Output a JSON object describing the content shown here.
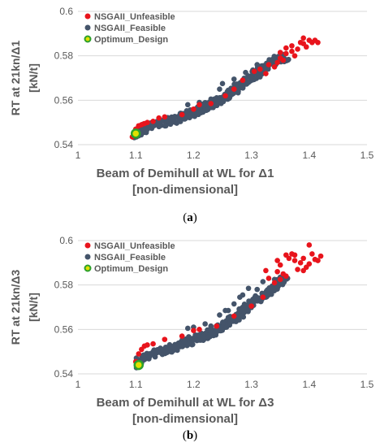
{
  "colors": {
    "unfeasible": "#e8141c",
    "feasible": "#44546a",
    "optimum_fill": "#e0e000",
    "optimum_stroke": "#2ca02c",
    "axis_text": "#595959",
    "grid": "#d9d9d9"
  },
  "captions": [
    "a",
    "b"
  ],
  "chart_data": [
    {
      "type": "scatter",
      "ylabel_line1": "RT at 21kn/Δ1",
      "ylabel_line2": "[kN/t]",
      "xlabel_line1": "Beam of Demihull at WL for Δ1",
      "xlabel_line2": "[non-dimensional]",
      "xlim": [
        1,
        1.5
      ],
      "ylim": [
        0.54,
        0.6
      ],
      "xticks": [
        "1",
        "1.1",
        "1.2",
        "1.3",
        "1.4",
        "1.5"
      ],
      "yticks": [
        "0.54",
        "0.56",
        "0.58",
        "0.6"
      ],
      "legend_position": "top-left",
      "series": [
        {
          "name": "NSGAII_Unfeasible",
          "points": [
            [
              1.094,
              0.5435
            ],
            [
              1.098,
              0.5445
            ],
            [
              1.1,
              0.547
            ],
            [
              1.105,
              0.5485
            ],
            [
              1.11,
              0.549
            ],
            [
              1.115,
              0.5495
            ],
            [
              1.12,
              0.55
            ],
            [
              1.13,
              0.5505
            ],
            [
              1.14,
              0.552
            ],
            [
              1.15,
              0.5525
            ],
            [
              1.18,
              0.5535
            ],
            [
              1.2,
              0.556
            ],
            [
              1.21,
              0.558
            ],
            [
              1.23,
              0.5585
            ],
            [
              1.255,
              0.562
            ],
            [
              1.27,
              0.565
            ],
            [
              1.285,
              0.569
            ],
            [
              1.305,
              0.573
            ],
            [
              1.315,
              0.574
            ],
            [
              1.33,
              0.576
            ],
            [
              1.34,
              0.575
            ],
            [
              1.345,
              0.577
            ],
            [
              1.35,
              0.579
            ],
            [
              1.355,
              0.578
            ],
            [
              1.36,
              0.581
            ],
            [
              1.37,
              0.582
            ],
            [
              1.375,
              0.58
            ],
            [
              1.38,
              0.583
            ],
            [
              1.385,
              0.586
            ],
            [
              1.39,
              0.588
            ],
            [
              1.395,
              0.584
            ],
            [
              1.4,
              0.587
            ],
            [
              1.405,
              0.586
            ],
            [
              1.41,
              0.587
            ],
            [
              1.415,
              0.586
            ],
            [
              1.36,
              0.5835
            ],
            [
              1.35,
              0.5815
            ],
            [
              1.37,
              0.5845
            ],
            [
              1.39,
              0.5855
            ],
            [
              1.325,
              0.572
            ],
            [
              1.1,
              0.5455
            ]
          ]
        },
        {
          "name": "NSGAII_Feasible",
          "band": [
            [
              1.1,
              0.5445
            ],
            [
              1.12,
              0.548
            ],
            [
              1.15,
              0.55
            ],
            [
              1.18,
              0.5525
            ],
            [
              1.2,
              0.5545
            ],
            [
              1.22,
              0.557
            ],
            [
              1.24,
              0.5595
            ],
            [
              1.26,
              0.5625
            ],
            [
              1.28,
              0.5665
            ],
            [
              1.3,
              0.5705
            ],
            [
              1.32,
              0.5745
            ],
            [
              1.34,
              0.5775
            ],
            [
              1.36,
              0.5795
            ]
          ],
          "extra_points": [
            [
              1.19,
              0.558
            ],
            [
              1.21,
              0.559
            ],
            [
              1.23,
              0.5605
            ],
            [
              1.245,
              0.565
            ],
            [
              1.25,
              0.5675
            ],
            [
              1.27,
              0.5695
            ],
            [
              1.29,
              0.5725
            ],
            [
              1.31,
              0.576
            ],
            [
              1.33,
              0.577
            ],
            [
              1.295,
              0.568
            ],
            [
              1.315,
              0.5705
            ],
            [
              1.26,
              0.5645
            ],
            [
              1.235,
              0.558
            ],
            [
              1.35,
              0.579
            ]
          ]
        },
        {
          "name": "Optimum_Design",
          "points": [
            [
              1.1,
              0.545
            ]
          ]
        }
      ]
    },
    {
      "type": "scatter",
      "ylabel_line1": "RT at 21kn/Δ3",
      "ylabel_line2": "[kN/t]",
      "xlabel_line1": "Beam of Demihull at WL for Δ3",
      "xlabel_line2": "[non-dimensional]",
      "xlim": [
        1,
        1.5
      ],
      "ylim": [
        0.54,
        0.6
      ],
      "xticks": [
        "1",
        "1.1",
        "1.2",
        "1.3",
        "1.4",
        "1.5"
      ],
      "yticks": [
        "0.54",
        "0.56",
        "0.58",
        "0.6"
      ],
      "legend_position": "top-left",
      "series": [
        {
          "name": "NSGAII_Unfeasible",
          "points": [
            [
              1.1,
              0.5455
            ],
            [
              1.105,
              0.549
            ],
            [
              1.11,
              0.551
            ],
            [
              1.115,
              0.5525
            ],
            [
              1.12,
              0.553
            ],
            [
              1.13,
              0.5535
            ],
            [
              1.15,
              0.5555
            ],
            [
              1.18,
              0.557
            ],
            [
              1.2,
              0.5595
            ],
            [
              1.21,
              0.56
            ],
            [
              1.24,
              0.5615
            ],
            [
              1.27,
              0.566
            ],
            [
              1.3,
              0.5705
            ],
            [
              1.32,
              0.5745
            ],
            [
              1.33,
              0.583
            ],
            [
              1.34,
              0.581
            ],
            [
              1.345,
              0.586
            ],
            [
              1.35,
              0.589
            ],
            [
              1.355,
              0.585
            ],
            [
              1.36,
              0.5935
            ],
            [
              1.365,
              0.592
            ],
            [
              1.37,
              0.594
            ],
            [
              1.375,
              0.591
            ],
            [
              1.38,
              0.587
            ],
            [
              1.385,
              0.59
            ],
            [
              1.39,
              0.592
            ],
            [
              1.395,
              0.588
            ],
            [
              1.4,
              0.598
            ],
            [
              1.405,
              0.594
            ],
            [
              1.41,
              0.5915
            ],
            [
              1.415,
              0.591
            ],
            [
              1.42,
              0.593
            ],
            [
              1.39,
              0.5865
            ],
            [
              1.36,
              0.584
            ],
            [
              1.35,
              0.5825
            ],
            [
              1.375,
              0.5935
            ],
            [
              1.4,
              0.5895
            ],
            [
              1.345,
              0.591
            ],
            [
              1.325,
              0.5865
            ]
          ]
        },
        {
          "name": "NSGAII_Feasible",
          "band": [
            [
              1.1,
              0.5445
            ],
            [
              1.12,
              0.548
            ],
            [
              1.15,
              0.5505
            ],
            [
              1.18,
              0.5535
            ],
            [
              1.2,
              0.5555
            ],
            [
              1.22,
              0.5575
            ],
            [
              1.24,
              0.56
            ],
            [
              1.26,
              0.5635
            ],
            [
              1.28,
              0.567
            ],
            [
              1.3,
              0.5715
            ],
            [
              1.32,
              0.5755
            ],
            [
              1.34,
              0.5795
            ],
            [
              1.36,
              0.583
            ]
          ],
          "extra_points": [
            [
              1.19,
              0.5605
            ],
            [
              1.2,
              0.561
            ],
            [
              1.22,
              0.5625
            ],
            [
              1.23,
              0.5615
            ],
            [
              1.245,
              0.5665
            ],
            [
              1.26,
              0.5685
            ],
            [
              1.27,
              0.5715
            ],
            [
              1.285,
              0.5755
            ],
            [
              1.295,
              0.5785
            ],
            [
              1.3,
              0.5725
            ],
            [
              1.31,
              0.578
            ],
            [
              1.32,
              0.5815
            ],
            [
              1.33,
              0.5775
            ],
            [
              1.34,
              0.5825
            ],
            [
              1.28,
              0.5745
            ],
            [
              1.255,
              0.5685
            ],
            [
              1.35,
              0.5835
            ],
            [
              1.29,
              0.5705
            ]
          ]
        },
        {
          "name": "Optimum_Design",
          "points": [
            [
              1.105,
              0.544
            ]
          ]
        }
      ]
    }
  ]
}
